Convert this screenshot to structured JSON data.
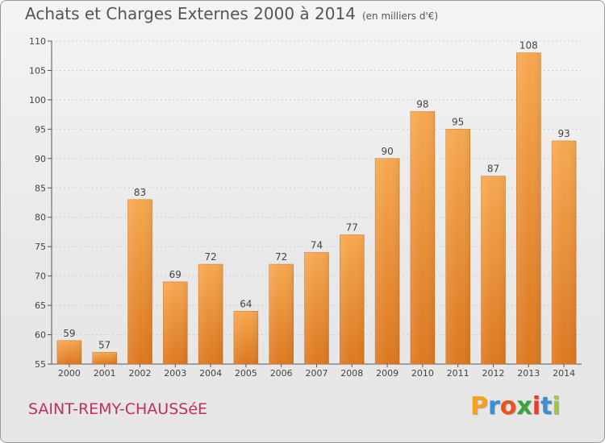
{
  "chart_data": {
    "type": "bar",
    "title": "Achats et Charges Externes 2000 à 2014",
    "subtitle": "(en milliers d'€)",
    "categories": [
      "2000",
      "2001",
      "2002",
      "2003",
      "2004",
      "2005",
      "2006",
      "2007",
      "2008",
      "2009",
      "2010",
      "2011",
      "2012",
      "2013",
      "2014"
    ],
    "values": [
      59,
      57,
      83,
      69,
      72,
      64,
      72,
      74,
      77,
      90,
      98,
      95,
      87,
      108,
      93
    ],
    "ylim": [
      55,
      110
    ],
    "yticks": [
      55,
      60,
      65,
      70,
      75,
      80,
      85,
      90,
      95,
      100,
      105,
      110
    ],
    "grid": true,
    "legend": "none",
    "bar_color": "#f0962e"
  },
  "footer": {
    "commune": "SAINT-REMY-CHAUSSéE"
  },
  "logo": {
    "letters": [
      "P",
      "r",
      "o",
      "x",
      "i",
      "t",
      "i"
    ],
    "colors": [
      "#f3a21a",
      "#3d8fd0",
      "#e9541e",
      "#3aa33a",
      "#e63b2e",
      "#3d8fd0",
      "#9bc93a"
    ]
  }
}
